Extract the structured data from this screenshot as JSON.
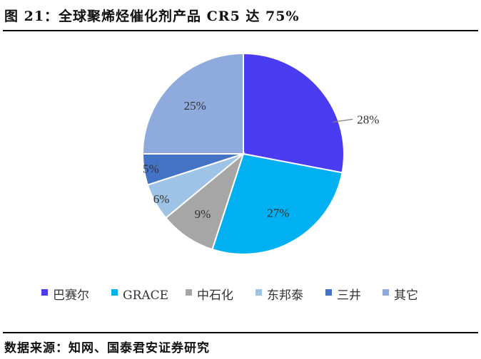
{
  "header": {
    "title": "图 21：全球聚烯烃催化剂产品 CR5 达 75%"
  },
  "footer": {
    "source": "数据来源：知网、国泰君安证券研究"
  },
  "chart_data": {
    "type": "pie",
    "title": "图 21：全球聚烯烃催化剂产品 CR5 达 75%",
    "legend_position": "bottom",
    "slices": [
      {
        "name": "巴赛尔",
        "value": 28,
        "label": "28%",
        "color": "#4A3CF0"
      },
      {
        "name": "GRACE",
        "value": 27,
        "label": "27%",
        "color": "#00B0F0"
      },
      {
        "name": "中石化",
        "value": 9,
        "label": "9%",
        "color": "#A6A6A6"
      },
      {
        "name": "东邦泰",
        "value": 6,
        "label": "6%",
        "color": "#9DC3E6"
      },
      {
        "name": "三井",
        "value": 5,
        "label": "5%",
        "color": "#4472C4"
      },
      {
        "name": "其它",
        "value": 25,
        "label": "25%",
        "color": "#8FAADC"
      }
    ]
  }
}
